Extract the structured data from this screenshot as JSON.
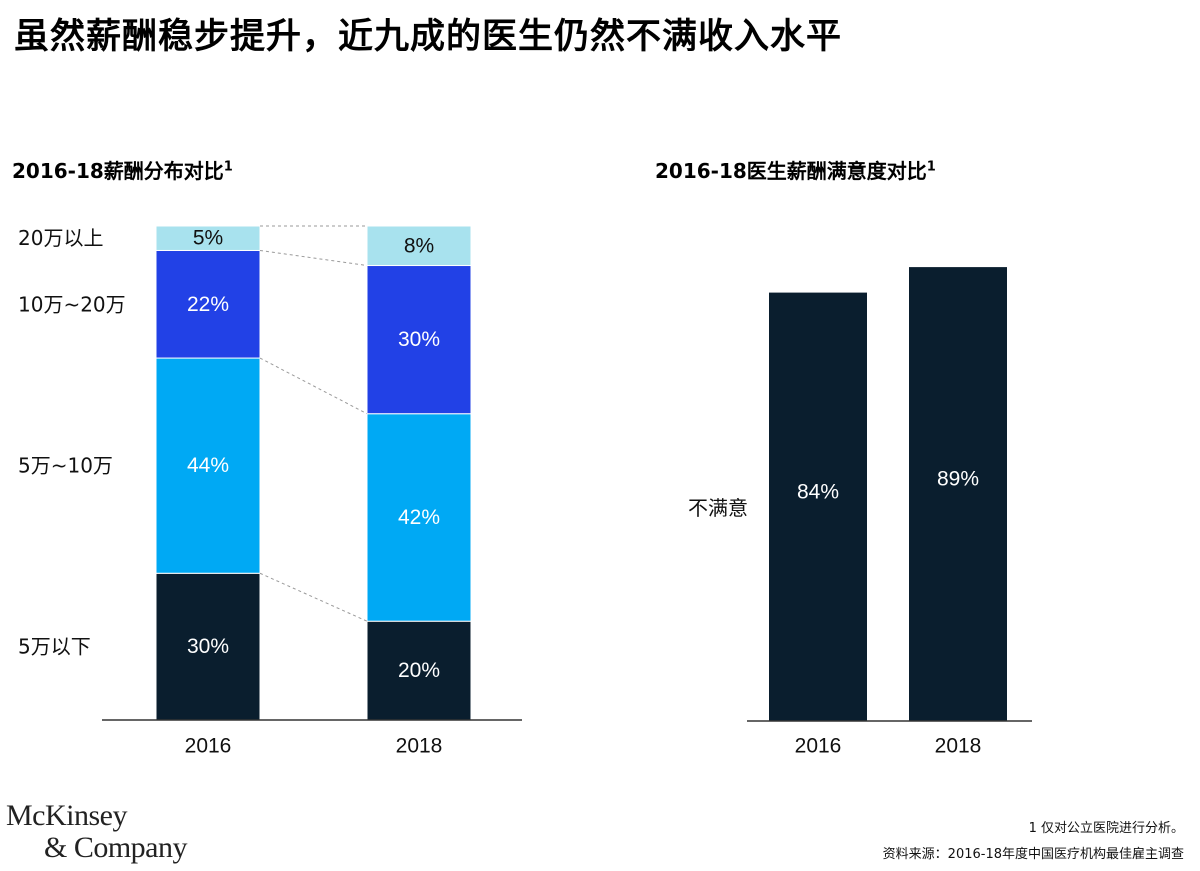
{
  "title": "虽然薪酬稳步提升，近九成的医生仍然不满收入水平",
  "left_chart": {
    "title": "2016-18薪酬分布对比",
    "footnote_marker": "1"
  },
  "right_chart": {
    "title": "2016-18医生薪酬满意度对比",
    "footnote_marker": "1"
  },
  "chart_data": [
    {
      "type": "bar",
      "stacked": true,
      "title": "2016-18薪酬分布对比",
      "categories": [
        "2016",
        "2018"
      ],
      "series": [
        {
          "name": "5万以下",
          "values": [
            30,
            20
          ],
          "color": "#0a1e2e"
        },
        {
          "name": "5万~10万",
          "values": [
            44,
            42
          ],
          "color": "#00a9f4"
        },
        {
          "name": "10万~20万",
          "values": [
            22,
            30
          ],
          "color": "#2241e6"
        },
        {
          "name": "20万以上",
          "values": [
            5,
            8
          ],
          "color": "#a8e2ee"
        }
      ],
      "value_suffix": "%",
      "ylim": [
        0,
        100
      ]
    },
    {
      "type": "bar",
      "title": "2016-18医生薪酬满意度对比",
      "categories": [
        "2016",
        "2018"
      ],
      "series": [
        {
          "name": "不满意",
          "values": [
            84,
            89
          ],
          "color": "#0a1e2e"
        }
      ],
      "value_suffix": "%",
      "ylim": [
        0,
        100
      ]
    }
  ],
  "footnotes": {
    "note": "1 仅对公立医院进行分析。",
    "source": "资料来源：2016-18年度中国医疗机构最佳雇主调查"
  },
  "logo": {
    "line1": "McKinsey",
    "line2": "& Company"
  }
}
